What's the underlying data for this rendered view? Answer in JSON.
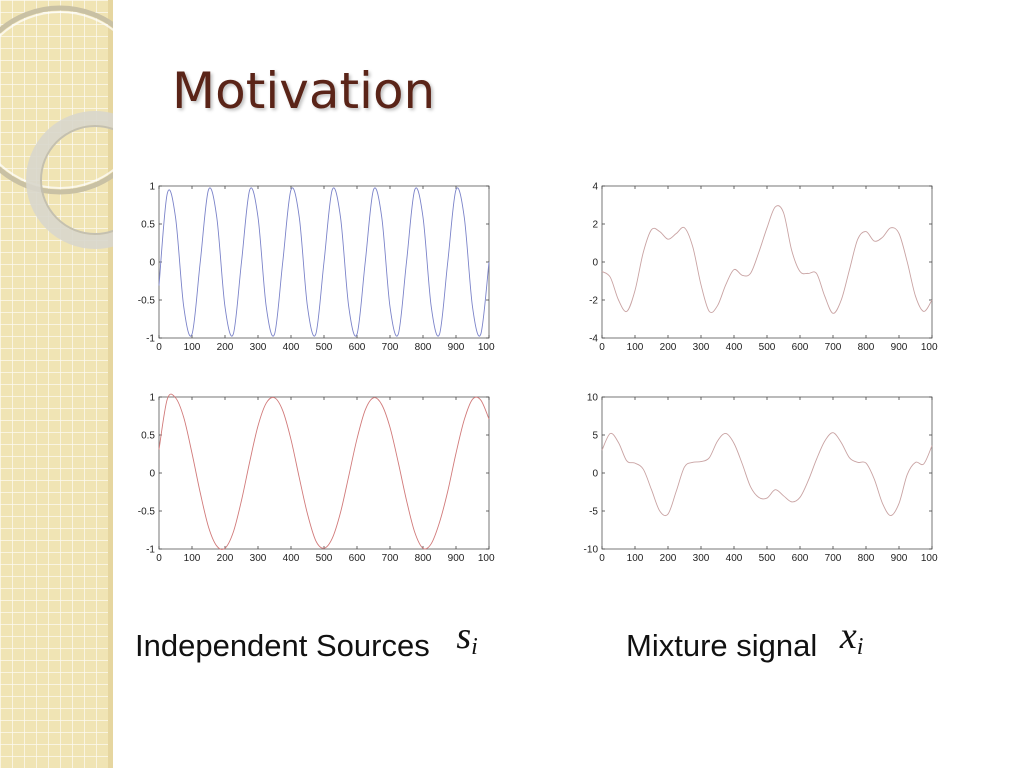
{
  "slide": {
    "title": "Motivation"
  },
  "captions": {
    "left": {
      "text": "Independent Sources",
      "symbol": "s",
      "subscript": "i"
    },
    "right": {
      "text": "Mixture signal",
      "symbol": "x",
      "subscript": "i"
    }
  },
  "colors": {
    "title": "#5a2418",
    "sidebar": "#f0e4b4",
    "source1": "#7b83c9",
    "source2": "#d17a7a",
    "mixture": "#c9a3a3"
  },
  "chart_data": [
    {
      "type": "line",
      "panel": "top-left",
      "x_range": [
        0,
        1000
      ],
      "ylim": [
        -1,
        1
      ],
      "xticks": [
        0,
        100,
        200,
        300,
        400,
        500,
        600,
        700,
        800,
        900,
        1000
      ],
      "yticks": [
        -1,
        -0.5,
        0,
        0.5,
        1
      ],
      "ytick_labels": [
        "-1",
        "-0.5",
        "0",
        "0.5",
        "1"
      ],
      "series": [
        {
          "color": "#7b83c9",
          "x": [
            0,
            25,
            50,
            75,
            100,
            125,
            150,
            175,
            200,
            225,
            250,
            275,
            300,
            325,
            350,
            375,
            400,
            425,
            450,
            475,
            500,
            525,
            550,
            575,
            600,
            625,
            650,
            675,
            700,
            725,
            750,
            775,
            800,
            825,
            850,
            875,
            900,
            925,
            950,
            975,
            1000
          ],
          "y": [
            -0.31,
            0.9,
            0.59,
            -0.59,
            -0.95,
            0.0,
            0.95,
            0.59,
            -0.59,
            -0.95,
            0.0,
            0.95,
            0.59,
            -0.59,
            -0.95,
            0.0,
            0.95,
            0.59,
            -0.59,
            -0.95,
            0.0,
            0.95,
            0.59,
            -0.59,
            -0.95,
            0.0,
            0.95,
            0.59,
            -0.59,
            -0.95,
            0.0,
            0.95,
            0.59,
            -0.59,
            -0.95,
            0.0,
            0.95,
            0.59,
            -0.59,
            -0.95,
            0.0
          ]
        }
      ]
    },
    {
      "type": "line",
      "panel": "top-right",
      "x_range": [
        0,
        1000
      ],
      "ylim": [
        -4,
        4
      ],
      "xticks": [
        0,
        100,
        200,
        300,
        400,
        500,
        600,
        700,
        800,
        900,
        1000
      ],
      "yticks": [
        -4,
        -2,
        0,
        2,
        4
      ],
      "ytick_labels": [
        "-4",
        "-2",
        "0",
        "2",
        "4"
      ],
      "series": [
        {
          "color": "#c9a3a3",
          "x": [
            0,
            25,
            50,
            75,
            100,
            125,
            150,
            175,
            200,
            225,
            250,
            275,
            300,
            325,
            350,
            375,
            400,
            425,
            450,
            475,
            500,
            525,
            550,
            575,
            600,
            625,
            650,
            675,
            700,
            725,
            750,
            775,
            800,
            825,
            850,
            875,
            900,
            925,
            950,
            975,
            1000
          ],
          "y": [
            -0.5,
            -0.8,
            -2.0,
            -2.6,
            -1.5,
            0.5,
            1.7,
            1.6,
            1.2,
            1.5,
            1.8,
            0.8,
            -1.2,
            -2.6,
            -2.3,
            -1.2,
            -0.4,
            -0.7,
            -0.6,
            0.5,
            1.8,
            2.9,
            2.6,
            0.6,
            -0.5,
            -0.6,
            -0.6,
            -1.8,
            -2.7,
            -2.0,
            -0.4,
            1.2,
            1.6,
            1.1,
            1.3,
            1.8,
            1.5,
            0.0,
            -1.8,
            -2.6,
            -2.0
          ]
        }
      ]
    },
    {
      "type": "line",
      "panel": "bottom-left",
      "x_range": [
        0,
        1000
      ],
      "ylim": [
        -1,
        1
      ],
      "xticks": [
        0,
        100,
        200,
        300,
        400,
        500,
        600,
        700,
        800,
        900,
        1000
      ],
      "yticks": [
        -1,
        -0.5,
        0,
        0.5,
        1
      ],
      "ytick_labels": [
        "-1",
        "-0.5",
        "0",
        "0.5",
        "1"
      ],
      "series": [
        {
          "color": "#d17a7a",
          "x": [
            0,
            25,
            50,
            75,
            100,
            125,
            150,
            175,
            200,
            225,
            250,
            275,
            300,
            325,
            350,
            375,
            400,
            425,
            450,
            475,
            500,
            525,
            550,
            575,
            600,
            625,
            650,
            675,
            700,
            725,
            750,
            775,
            800,
            825,
            850,
            875,
            900,
            925,
            950,
            975,
            1000
          ],
          "y": [
            0.31,
            0.97,
            0.99,
            0.73,
            0.26,
            -0.26,
            -0.71,
            -0.96,
            -0.99,
            -0.78,
            -0.36,
            0.15,
            0.62,
            0.92,
            0.99,
            0.82,
            0.44,
            -0.06,
            -0.54,
            -0.89,
            -0.99,
            -0.86,
            -0.52,
            -0.04,
            0.45,
            0.83,
            0.99,
            0.9,
            0.6,
            0.14,
            -0.36,
            -0.78,
            -0.99,
            -0.93,
            -0.65,
            -0.24,
            0.26,
            0.7,
            0.97,
            0.96,
            0.71
          ]
        }
      ]
    },
    {
      "type": "line",
      "panel": "bottom-right",
      "x_range": [
        0,
        1000
      ],
      "ylim": [
        -10,
        10
      ],
      "xticks": [
        0,
        100,
        200,
        300,
        400,
        500,
        600,
        700,
        800,
        900,
        1000
      ],
      "yticks": [
        -10,
        -5,
        0,
        5,
        10
      ],
      "ytick_labels": [
        "-10",
        "-5",
        "0",
        "5",
        "10"
      ],
      "series": [
        {
          "color": "#c9a3a3",
          "x": [
            0,
            25,
            50,
            75,
            100,
            125,
            150,
            175,
            200,
            225,
            250,
            275,
            300,
            325,
            350,
            375,
            400,
            425,
            450,
            475,
            500,
            525,
            550,
            575,
            600,
            625,
            650,
            675,
            700,
            725,
            750,
            775,
            800,
            825,
            850,
            875,
            900,
            925,
            950,
            975,
            1000
          ],
          "y": [
            3.0,
            5.2,
            4.0,
            1.6,
            1.3,
            0.5,
            -2.2,
            -5.0,
            -5.4,
            -2.4,
            0.8,
            1.4,
            1.5,
            2.0,
            4.2,
            5.2,
            3.9,
            1.2,
            -1.8,
            -3.2,
            -3.3,
            -2.2,
            -3.0,
            -3.8,
            -3.2,
            -1.0,
            1.8,
            4.2,
            5.3,
            4.0,
            2.0,
            1.4,
            1.3,
            -0.8,
            -4.0,
            -5.6,
            -4.0,
            -0.2,
            1.4,
            1.2,
            3.6
          ]
        }
      ]
    }
  ]
}
